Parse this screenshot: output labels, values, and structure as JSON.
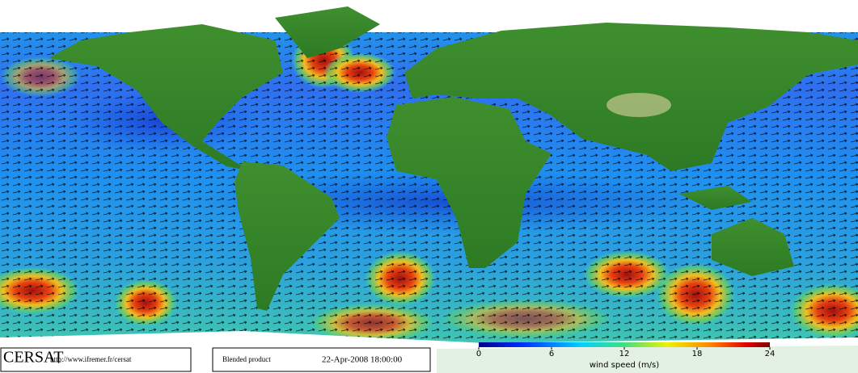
{
  "footer": {
    "logo": "CERSAT",
    "url": "http://www.ifremer.fr/cersat",
    "product": "Blended product",
    "date": "22-Apr-2008 18:00:00"
  },
  "colorbar": {
    "label": "wind speed (m/s)",
    "range": [
      0,
      24
    ],
    "ticks": [
      0,
      6,
      12,
      18,
      24
    ]
  }
}
